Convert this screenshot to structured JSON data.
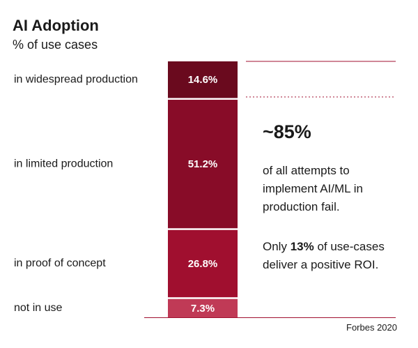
{
  "chart_data": {
    "type": "stacked-bar",
    "title": "AI Adoption",
    "subtitle": "% of use cases",
    "categories": [
      "in widespread production",
      "in limited production",
      "in proof of concept",
      "not in use"
    ],
    "values": [
      14.6,
      51.2,
      26.8,
      7.3
    ],
    "value_labels": [
      "14.6%",
      "51.2%",
      "26.8%",
      "7.3%"
    ],
    "colors": [
      "#6a0a1e",
      "#880c28",
      "#a00f2f",
      "#c03a56"
    ],
    "annotations": {
      "headline": "~85%",
      "note1": "of all attempts to implement AI/ML in production fail.",
      "note2": [
        "Only ",
        "13%",
        " of use-cases deliver a positive ROI."
      ]
    },
    "source": "Forbes 2020"
  }
}
